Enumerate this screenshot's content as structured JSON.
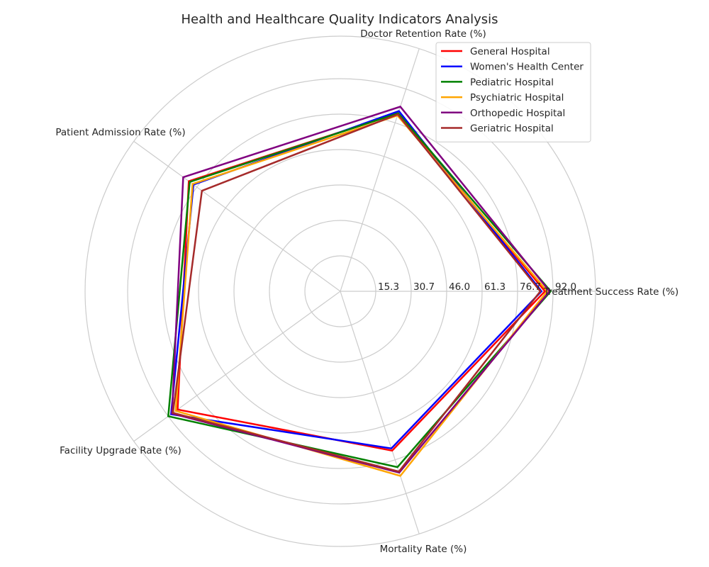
{
  "chart_data": {
    "type": "radar",
    "title": "Health and Healthcare Quality Indicators Analysis",
    "axes": [
      "Treatment Success Rate (%)",
      "Doctor Retention Rate (%)",
      "Patient Admission Rate (%)",
      "Facility Upgrade Rate (%)",
      "Mortality Rate (%)"
    ],
    "r_ticks": [
      "15.3",
      "30.7",
      "46.0",
      "61.3",
      "76.7",
      "92.0"
    ],
    "rlim": [
      0,
      92.0
    ],
    "grid": true,
    "legend_position": "top-right",
    "series": [
      {
        "name": "General Hospital",
        "color": "#ff0000",
        "values": [
          88.5,
          81.0,
          81.0,
          87.0,
          72.5
        ]
      },
      {
        "name": "Women's Health Center",
        "color": "#0000ff",
        "values": [
          87.0,
          82.0,
          78.5,
          90.5,
          71.5
        ]
      },
      {
        "name": "Pediatric Hospital",
        "color": "#008000",
        "values": [
          91.0,
          81.0,
          80.5,
          92.0,
          80.0
        ]
      },
      {
        "name": "Psychiatric Hospital",
        "color": "#ffa500",
        "values": [
          89.5,
          80.0,
          79.0,
          88.0,
          84.0
        ]
      },
      {
        "name": "Orthopedic Hospital",
        "color": "#800080",
        "values": [
          90.5,
          84.0,
          84.0,
          90.0,
          82.5
        ]
      },
      {
        "name": "Geriatric Hospital",
        "color": "#a52a2a",
        "values": [
          86.5,
          80.5,
          74.0,
          89.5,
          82.0
        ]
      }
    ]
  }
}
